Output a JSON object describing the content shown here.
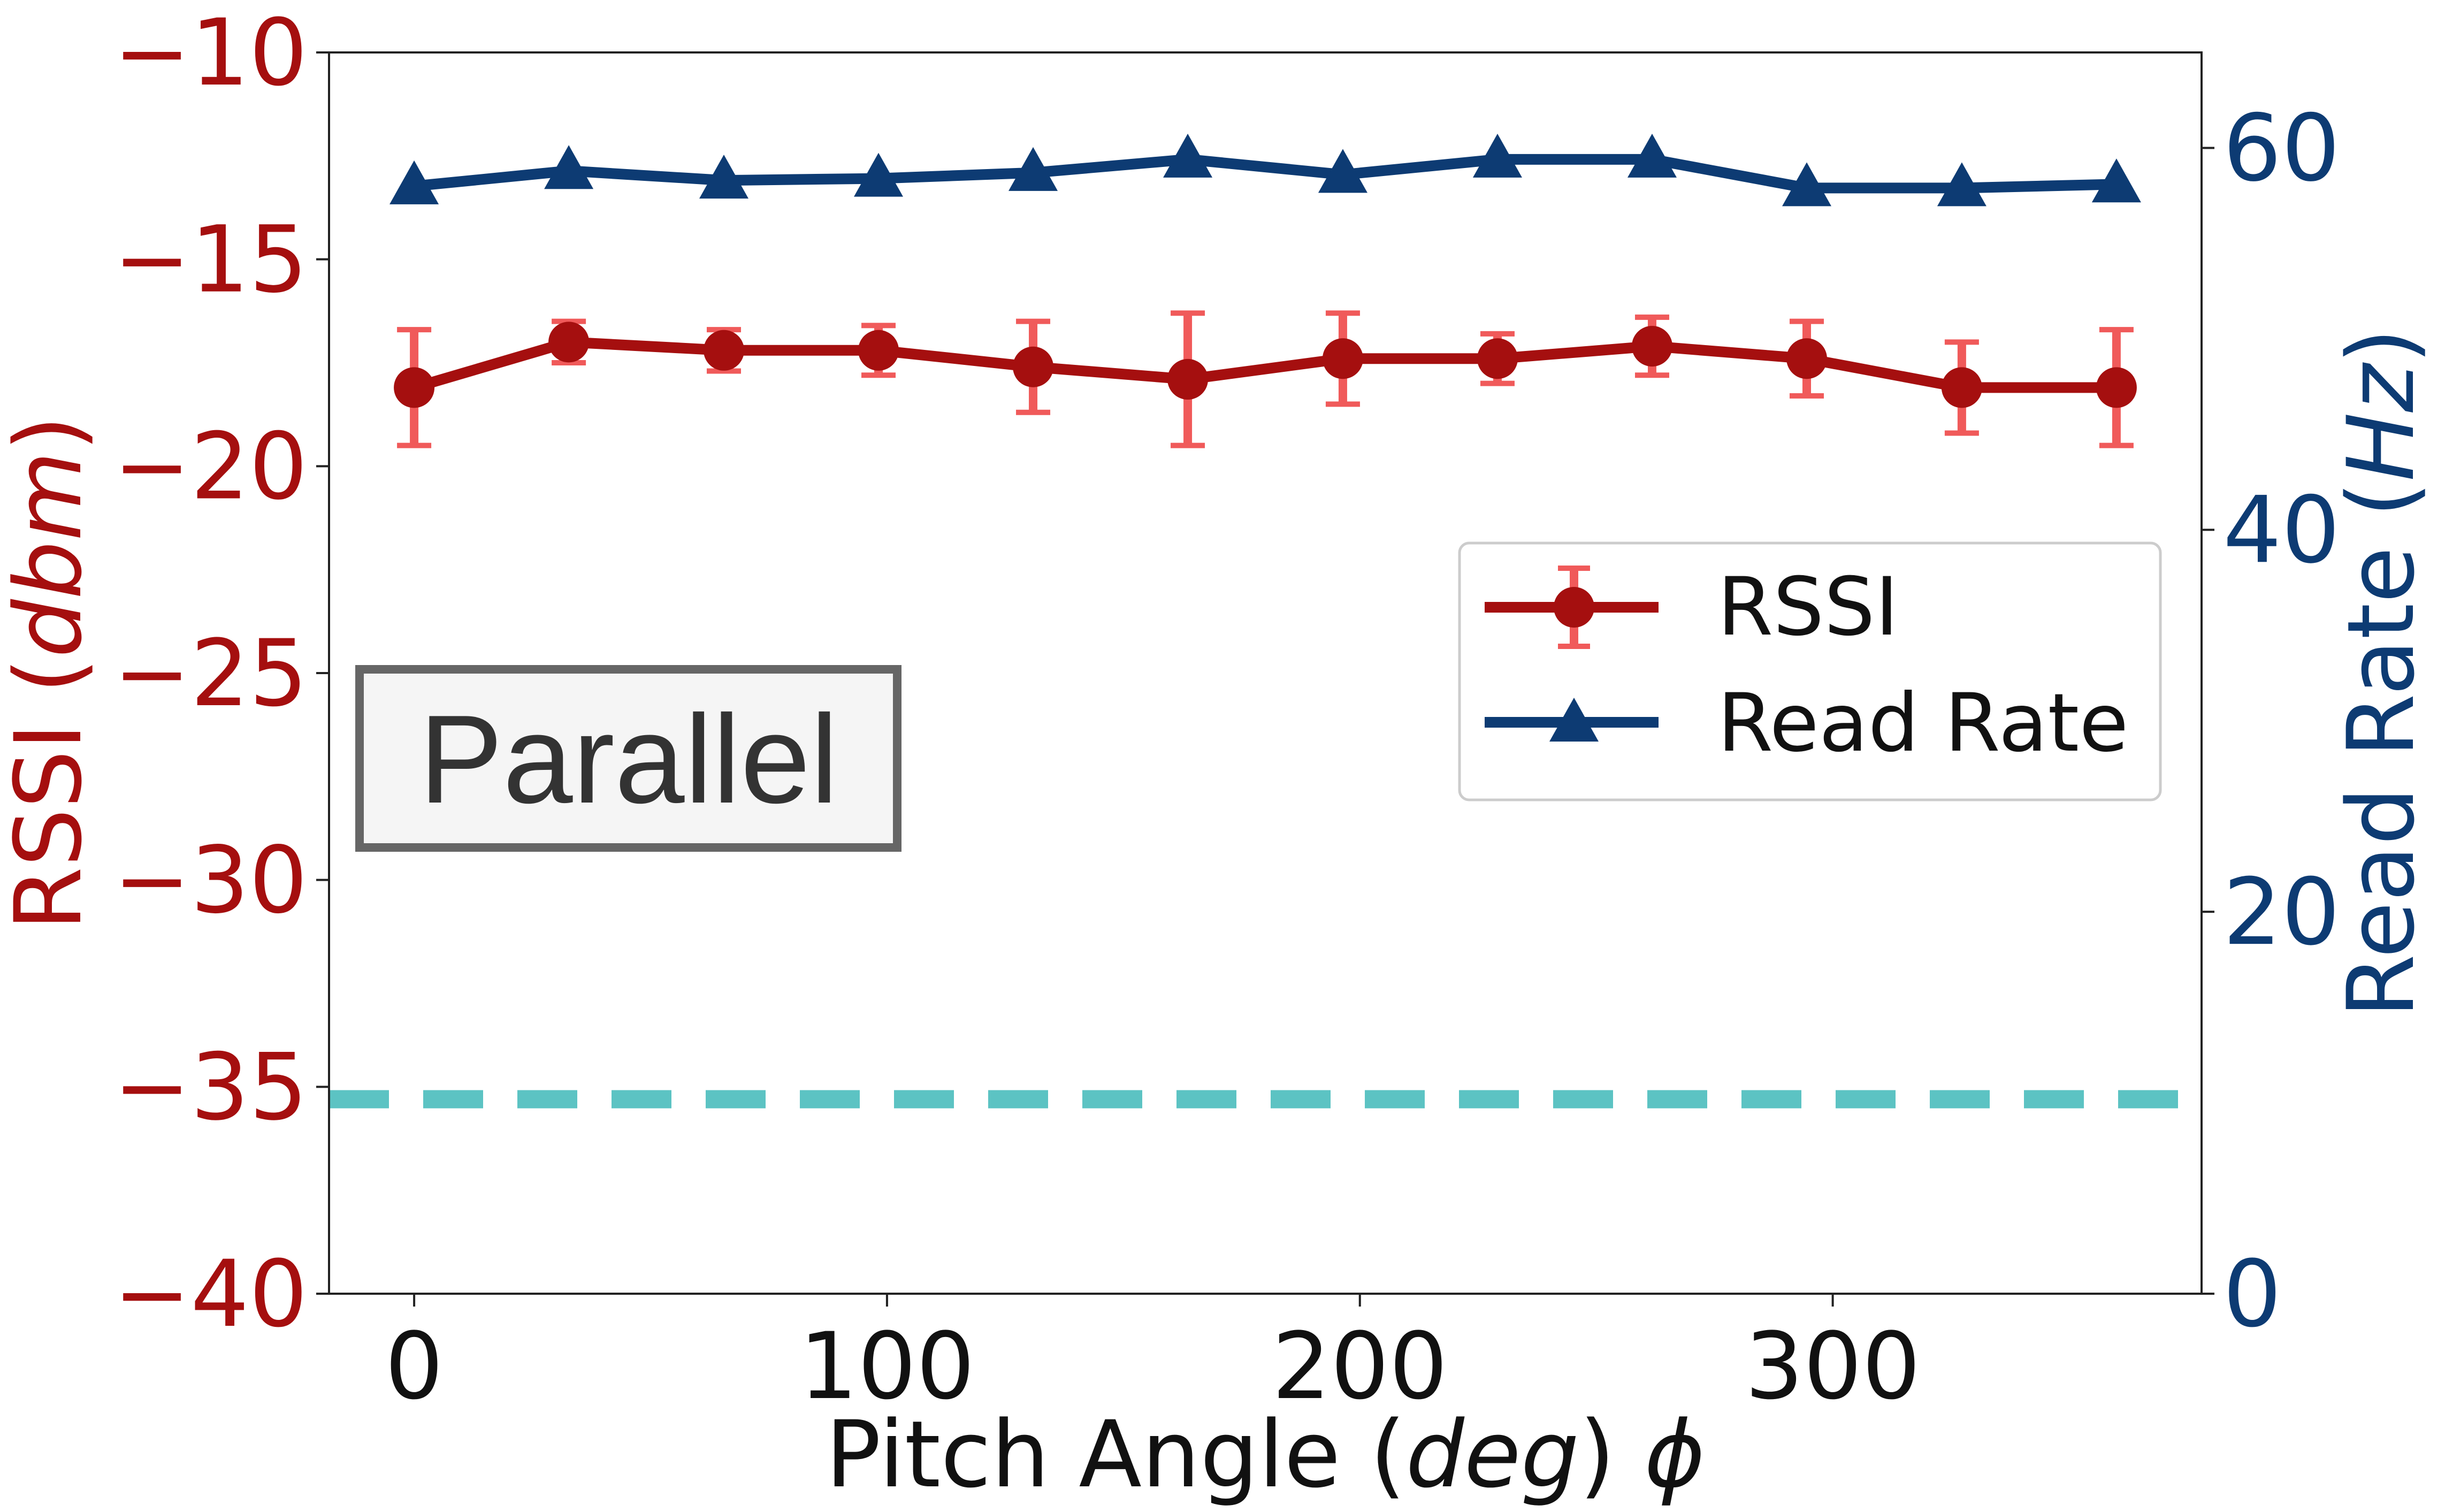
{
  "chart_data": {
    "type": "line",
    "x": [
      0,
      32.7,
      65.5,
      98.2,
      130.9,
      163.6,
      196.4,
      229.1,
      261.8,
      294.5,
      327.3,
      360
    ],
    "series": [
      {
        "name": "RSSI",
        "axis": "left",
        "values": [
          -18.1,
          -17.0,
          -17.2,
          -17.2,
          -17.6,
          -17.9,
          -17.4,
          -17.4,
          -17.1,
          -17.4,
          -18.1,
          -18.1
        ],
        "error": [
          1.4,
          0.5,
          0.5,
          0.6,
          1.1,
          1.6,
          1.1,
          0.6,
          0.7,
          0.9,
          1.1,
          1.4
        ],
        "color": "#a50f0f",
        "error_color": "#f05a5a",
        "marker": "circle"
      },
      {
        "name": "Read Rate",
        "axis": "right",
        "values": [
          58.0,
          58.8,
          58.3,
          58.4,
          58.7,
          59.4,
          58.6,
          59.4,
          59.4,
          57.9,
          57.9,
          58.1
        ],
        "color": "#0d3b73",
        "marker": "triangle"
      }
    ],
    "reference_line": {
      "axis": "left",
      "y": -35.3,
      "style": "dashed",
      "color": "#5cc3c3"
    },
    "xlabel": "Pitch Angle (deg) ϕ",
    "xlabel_parts": {
      "plain1": "Pitch Angle (",
      "italic": "deg",
      "plain2": ") ",
      "symbol": "ϕ"
    },
    "ylabel_left": "RSSI (dbm)",
    "ylabel_left_parts": {
      "plain1": "RSSI (",
      "italic": "dbm",
      "plain2": ")"
    },
    "ylabel_right": "Read Rate (Hz)",
    "ylabel_right_parts": {
      "plain1": "Read Rate (",
      "italic": "Hz",
      "plain2": ")"
    },
    "xlim": [
      -18,
      378
    ],
    "ylim_left": [
      -40,
      -10
    ],
    "ylim_right": [
      0,
      65
    ],
    "xticks": [
      0,
      100,
      200,
      300
    ],
    "yticks_left": [
      -40,
      -35,
      -30,
      -25,
      -20,
      -15,
      -10
    ],
    "yticks_left_labels": [
      "−40",
      "−35",
      "−30",
      "−25",
      "−20",
      "−15",
      "−10"
    ],
    "yticks_right": [
      0,
      20,
      40,
      60
    ],
    "legend": {
      "placement": "center-right",
      "entries": [
        "RSSI",
        "Read Rate"
      ]
    },
    "annotation": {
      "text": "Parallel",
      "placement": "middle-left"
    },
    "left_axis_color": "#a50f0f",
    "right_axis_color": "#0d3b73",
    "grid": false
  }
}
